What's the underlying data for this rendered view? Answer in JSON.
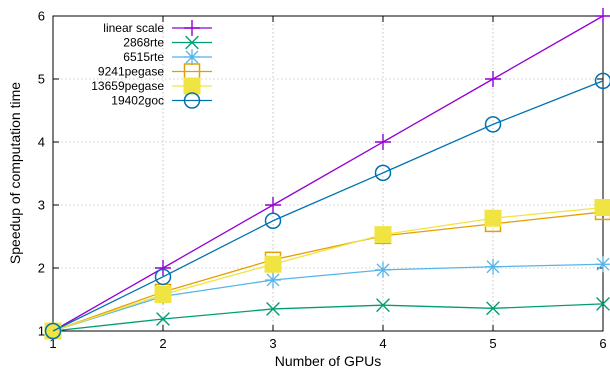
{
  "chart_data": {
    "type": "line",
    "xlabel": "Number of GPUs",
    "ylabel": "Speedup of computation time",
    "x": [
      1,
      2,
      3,
      4,
      5,
      6
    ],
    "xlim": [
      1,
      6
    ],
    "ylim": [
      1,
      6
    ],
    "xticks": [
      "1",
      "2",
      "3",
      "4",
      "5",
      "6"
    ],
    "yticks": [
      "1",
      "2",
      "3",
      "4",
      "5",
      "6"
    ],
    "grid": true,
    "legend_position": "top-left",
    "series": [
      {
        "name": "linear scale",
        "color": "#9400d3",
        "marker": "plus",
        "values": [
          1,
          2,
          3,
          4,
          5,
          6
        ]
      },
      {
        "name": "2868rte",
        "color": "#009e73",
        "marker": "cross",
        "values": [
          1,
          1.19,
          1.35,
          1.41,
          1.36,
          1.43
        ]
      },
      {
        "name": "6515rte",
        "color": "#56b4e9",
        "marker": "star",
        "values": [
          1,
          1.55,
          1.81,
          1.97,
          2.02,
          2.06
        ]
      },
      {
        "name": "9241pegase",
        "color": "#e69f00",
        "marker": "square-open",
        "values": [
          1,
          1.62,
          2.13,
          2.51,
          2.7,
          2.89
        ]
      },
      {
        "name": "13659pegase",
        "color": "#f0e442",
        "marker": "square-filled",
        "values": [
          1,
          1.58,
          2.06,
          2.53,
          2.79,
          2.96
        ]
      },
      {
        "name": "19402goc",
        "color": "#0072b2",
        "marker": "circle-open",
        "values": [
          1,
          1.86,
          2.75,
          3.51,
          4.28,
          4.97
        ]
      }
    ]
  }
}
